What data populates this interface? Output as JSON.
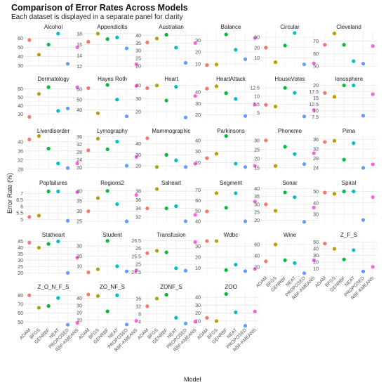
{
  "title": "Comparison of Error Rates Across Models",
  "subtitle": "Each dataset is displayed in a separate panel for clarity",
  "chart_data": {
    "type": "scatter",
    "xlabel": "Model",
    "ylabel": "Error Rate (%)",
    "categories": [
      "ADAM",
      "BFGS",
      "GENRBF",
      "NEAT",
      "PROPOSED",
      "RBF-KMEANS"
    ],
    "colors": [
      "#F8766D",
      "#B79F00",
      "#00BA38",
      "#00BFC4",
      "#619CFF",
      "#F564E3"
    ],
    "panels": [
      {
        "name": "Alcohol",
        "ylim": [
          28,
          68
        ],
        "ticks": [
          30,
          40,
          50,
          60
        ],
        "values": [
          58,
          42,
          53,
          65,
          32,
          50
        ]
      },
      {
        "name": "Appendicitis",
        "ylim": [
          11.8,
          18.5
        ],
        "ticks": [
          12,
          14,
          16,
          18
        ],
        "values": [
          16.5,
          18,
          17,
          17.3,
          15.3,
          12.4
        ]
      },
      {
        "name": "Australian",
        "ylim": [
          19,
          43
        ],
        "ticks": [
          20,
          25,
          30,
          35,
          40
        ],
        "values": [
          35.5,
          38,
          40.5,
          32,
          22,
          35
        ]
      },
      {
        "name": "Balance",
        "ylim": [
          7,
          38
        ],
        "ticks": [
          10,
          20,
          30
        ],
        "values": [
          9,
          9.5,
          35,
          22,
          14,
          32
        ]
      },
      {
        "name": "Circular",
        "ylim": [
          1,
          36
        ],
        "ticks": [
          10,
          20,
          30
        ],
        "values": [
          20,
          6,
          22,
          34,
          4,
          5
        ]
      },
      {
        "name": "Cleveland",
        "ylim": [
          49,
          78
        ],
        "ticks": [
          50,
          60,
          70
        ],
        "values": [
          67,
          76,
          67,
          54,
          52,
          66
        ]
      },
      {
        "name": "Dermatology",
        "ylim": [
          24,
          67
        ],
        "ticks": [
          30,
          40,
          50,
          60
        ],
        "values": [
          27,
          54,
          62,
          34,
          37,
          62
        ]
      },
      {
        "name": "Hayes Roth",
        "ylim": [
          31,
          66
        ],
        "ticks": [
          40,
          50,
          60
        ],
        "values": [
          61,
          37,
          64,
          50,
          34,
          63
        ]
      },
      {
        "name": "Heart",
        "ylim": [
          14,
          42
        ],
        "ticks": [
          20,
          30,
          40
        ],
        "values": [
          38,
          40,
          28.5,
          39,
          15.5,
          32
        ]
      },
      {
        "name": "HeartAttack",
        "ylim": [
          16,
          48
        ],
        "ticks": [
          20,
          30,
          40
        ],
        "values": [
          43,
          45,
          39,
          34,
          19,
          29
        ]
      },
      {
        "name": "HouseVotes",
        "ylim": [
          3,
          14
        ],
        "ticks": [
          5.0,
          7.5,
          10.0,
          12.5
        ],
        "values": [
          7.4,
          6.9,
          12.5,
          11,
          3.9,
          5.8
        ]
      },
      {
        "name": "Ionosphere",
        "ylim": [
          6.5,
          21
        ],
        "ticks": [
          7.5,
          10.0,
          12.5,
          15.0,
          17.5,
          20.0
        ],
        "values": [
          17,
          15.5,
          20,
          20,
          8,
          16.5
        ]
      },
      {
        "name": "Liverdisorder",
        "ylim": [
          27,
          43
        ],
        "ticks": [
          28,
          32,
          36,
          40
        ],
        "values": [
          41,
          42.5,
          37,
          30.5,
          28.5,
          30.5
        ]
      },
      {
        "name": "Lymography",
        "ylim": [
          18,
          37
        ],
        "ticks": [
          20,
          24,
          28,
          32,
          36
        ],
        "values": [
          29,
          35,
          29.5,
          33.5,
          21,
          25.5
        ]
      },
      {
        "name": "Mammographic",
        "ylim": [
          15,
          48
        ],
        "ticks": [
          20,
          30,
          40
        ],
        "values": [
          45,
          19,
          30,
          25,
          19,
          22
        ]
      },
      {
        "name": "Parkinsons",
        "ylim": [
          12,
          45
        ],
        "ticks": [
          20,
          30,
          40
        ],
        "values": [
          24,
          28,
          44,
          19,
          16,
          17
        ]
      },
      {
        "name": "Phoneme",
        "ylim": [
          13,
          33
        ],
        "ticks": [
          15,
          20,
          25,
          30
        ],
        "values": [
          30,
          16,
          26.5,
          22.5,
          17,
          23
        ]
      },
      {
        "name": "Pima",
        "ylim": [
          22.5,
          38
        ],
        "ticks": [
          24,
          28,
          32,
          36
        ],
        "values": [
          35,
          35.5,
          27.5,
          34.5,
          24,
          25.5
        ]
      },
      {
        "name": "Popfailures",
        "ylim": [
          4.7,
          7.5
        ],
        "ticks": [
          5.0,
          5.5,
          6.0,
          6.5,
          7.0
        ],
        "values": [
          5.2,
          5.3,
          7.15,
          7.15,
          4.9,
          7.1
        ]
      },
      {
        "name": "Regions2",
        "ylim": [
          24,
          42
        ],
        "ticks": [
          25,
          30,
          35,
          40
        ],
        "values": [
          30,
          36.5,
          40,
          33.5,
          25,
          38
        ]
      },
      {
        "name": "Saheart",
        "ylim": [
          30.5,
          39
        ],
        "ticks": [
          32,
          34,
          36,
          38
        ],
        "values": [
          34,
          38.5,
          34,
          34.5,
          31,
          32.5
        ]
      },
      {
        "name": "Segment",
        "ylim": [
          38,
          73
        ],
        "ticks": [
          40,
          50,
          60,
          70
        ],
        "values": [
          49.5,
          67,
          53,
          67,
          40,
          59
        ]
      },
      {
        "name": "Sonar",
        "ylim": [
          18,
          41
        ],
        "ticks": [
          20,
          25,
          30,
          35,
          40
        ],
        "values": [
          30,
          26,
          37.5,
          34.5,
          19,
          28
        ]
      },
      {
        "name": "Spiral",
        "ylim": [
          22,
          54
        ],
        "ticks": [
          30,
          40,
          50
        ],
        "values": [
          49,
          48,
          50,
          50,
          25,
          45
        ]
      },
      {
        "name": "Statheart",
        "ylim": [
          18,
          47
        ],
        "ticks": [
          20,
          25,
          30,
          35,
          40,
          45
        ],
        "values": [
          44,
          40,
          43,
          45,
          20,
          32
        ]
      },
      {
        "name": "Student",
        "ylim": [
          1,
          37
        ],
        "ticks": [
          10,
          20,
          30
        ],
        "values": [
          4,
          7,
          35,
          10,
          5,
          6
        ]
      },
      {
        "name": "Transfusion",
        "ylim": [
          24.3,
          26.6
        ],
        "ticks": [
          24.5,
          25.0,
          25.5,
          26.0,
          26.5
        ],
        "values": [
          25.7,
          25.85,
          25.75,
          24.75,
          24.6,
          26.4
        ]
      },
      {
        "name": "Wdbc",
        "ylim": [
          3,
          37
        ],
        "ticks": [
          10,
          20,
          30
        ],
        "values": [
          35,
          35,
          8,
          13,
          7,
          9
        ]
      },
      {
        "name": "Wine",
        "ylim": [
          5,
          70
        ],
        "ticks": [
          20,
          40,
          60
        ],
        "values": [
          30,
          60,
          32,
          27,
          9,
          32
        ]
      },
      {
        "name": "Z_F_S",
        "ylim": [
          0,
          55
        ],
        "ticks": [
          10,
          20,
          30,
          40,
          50
        ],
        "values": [
          48,
          40,
          24,
          38,
          6,
          13
        ]
      },
      {
        "name": "Z_O_N_F_S",
        "ylim": [
          44,
          85
        ],
        "ticks": [
          50,
          60,
          70,
          80
        ],
        "values": [
          80,
          66,
          68,
          77,
          47,
          49
        ]
      },
      {
        "name": "ZO_NF_S",
        "ylim": [
          0,
          50
        ],
        "ticks": [
          10,
          20,
          30,
          40
        ],
        "values": [
          45,
          43,
          22,
          44,
          4,
          9
        ]
      },
      {
        "name": "ZONF_S",
        "ylim": [
          1,
          20
        ],
        "ticks": [
          4,
          8,
          12,
          16
        ],
        "values": [
          12,
          16,
          18,
          6,
          3,
          4
        ]
      },
      {
        "name": "ZOO",
        "ylim": [
          2,
          48
        ],
        "ticks": [
          10,
          20,
          30,
          40
        ],
        "values": [
          14,
          10,
          44,
          21,
          4,
          22
        ]
      }
    ]
  }
}
